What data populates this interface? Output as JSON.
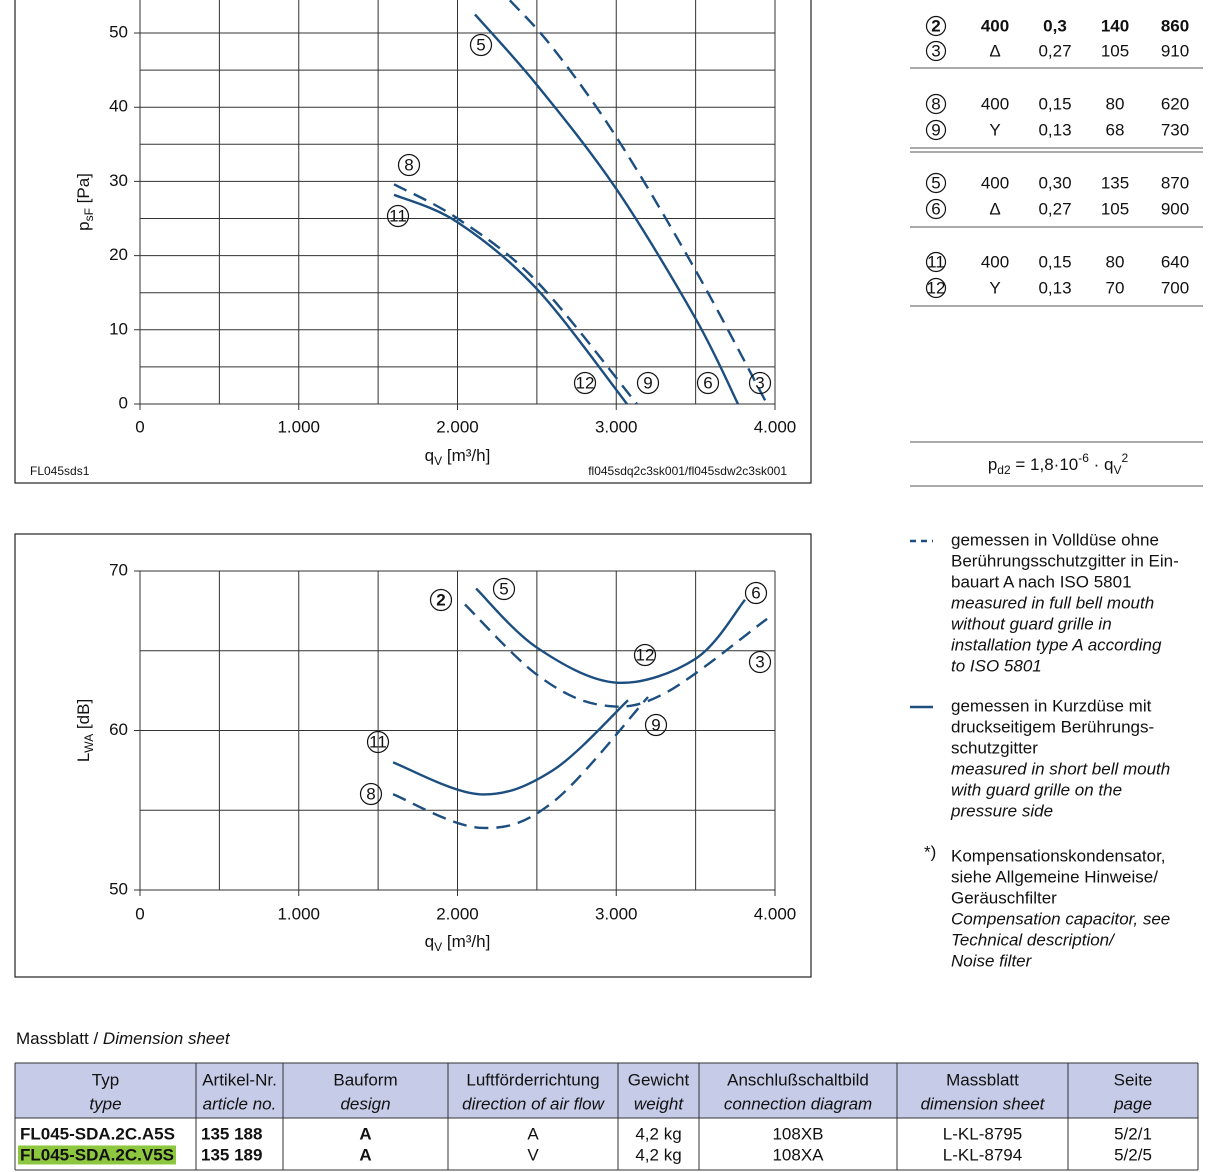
{
  "chart_data": [
    {
      "type": "line",
      "ylabel": {
        "symbol": "p",
        "subscript": "sF",
        "unit": " [Pa]"
      },
      "xlabel": {
        "symbol": "q",
        "subscript": "V",
        "unit": " [m³/h]"
      },
      "xlim": [
        0,
        4000
      ],
      "ylim": [
        0,
        60
      ],
      "xticks": [
        0,
        {
          "value": 1000,
          "label": "1.000"
        },
        {
          "value": 2000,
          "label": "2.000"
        },
        {
          "value": 3000,
          "label": "3.000"
        },
        {
          "value": 4000,
          "label": "4.000"
        }
      ],
      "yticks": [
        0,
        10,
        20,
        30,
        40,
        50
      ],
      "minor_xticks": [
        500,
        1500,
        2500,
        3500
      ],
      "minor_yticks": [
        5,
        15,
        25,
        35,
        45,
        55
      ],
      "grid": true,
      "notes": [
        "FL045sds1",
        "fl045sdq2c3sk001/fl045sdw2c3sk001"
      ],
      "series": [
        {
          "style": "solid",
          "color": "#1c4f80",
          "labels": [
            "5",
            "6"
          ],
          "x": [
            2110,
            2500,
            3000,
            3500,
            3767
          ],
          "values": [
            52.5,
            43,
            29,
            11.5,
            0
          ]
        },
        {
          "style": "dashed",
          "color": "#1c4f80",
          "labels": [
            "3"
          ],
          "x": [
            2330,
            2600,
            3000,
            3500,
            3950
          ],
          "values": [
            54.4,
            48,
            36,
            18,
            0
          ]
        },
        {
          "style": "solid",
          "color": "#1c4f80",
          "labels": [
            "11",
            "12"
          ],
          "x": [
            1600,
            2000,
            2500,
            3068
          ],
          "values": [
            28.2,
            24.5,
            15.5,
            0
          ]
        },
        {
          "style": "dashed",
          "color": "#1c4f80",
          "labels": [
            "8",
            "9"
          ],
          "x": [
            1600,
            2000,
            2500,
            3130
          ],
          "values": [
            29.6,
            25,
            16.5,
            0
          ]
        }
      ]
    },
    {
      "type": "line",
      "ylabel": {
        "symbol": "L",
        "subscript": "WA",
        "unit": " [dB]"
      },
      "xlabel": {
        "symbol": "q",
        "subscript": "V",
        "unit": " [m³/h]"
      },
      "xlim": [
        0,
        4000
      ],
      "ylim": [
        50,
        70
      ],
      "xticks": [
        0,
        {
          "value": 1000,
          "label": "1.000"
        },
        {
          "value": 2000,
          "label": "2.000"
        },
        {
          "value": 3000,
          "label": "3.000"
        },
        {
          "value": 4000,
          "label": "4.000"
        }
      ],
      "yticks": [
        50,
        60,
        70
      ],
      "minor_xticks": [
        500,
        1500,
        2500,
        3500
      ],
      "minor_yticks": [
        55,
        65
      ],
      "grid": true,
      "notes": [],
      "series": [
        {
          "style": "solid",
          "color": "#1c4f80",
          "labels": [
            "5",
            "6"
          ],
          "x": [
            2117,
            2500,
            3000,
            3500,
            3811
          ],
          "values": [
            68.9,
            65.2,
            63.0,
            64.5,
            68.2
          ]
        },
        {
          "style": "dashed",
          "color": "#1c4f80",
          "labels": [
            "2",
            "3"
          ],
          "x": [
            2047,
            2500,
            2900,
            3300,
            3950
          ],
          "values": [
            67.9,
            63.5,
            61.6,
            62.3,
            67.0
          ]
        },
        {
          "style": "solid",
          "color": "#1c4f80",
          "labels": [
            "11",
            "12"
          ],
          "x": [
            1594,
            2140,
            2600,
            3074
          ],
          "values": [
            58.0,
            56.0,
            57.5,
            61.9
          ]
        },
        {
          "style": "dashed",
          "color": "#1c4f80",
          "labels": [
            "8",
            "9"
          ],
          "x": [
            1594,
            2140,
            2600,
            3200
          ],
          "values": [
            56.0,
            53.9,
            55.5,
            62.1
          ]
        }
      ]
    }
  ],
  "operating_points": {
    "rows": [
      [
        "2",
        "400",
        "0,3",
        "140",
        "860"
      ],
      [
        "3",
        "Δ",
        "0,27",
        "105",
        "910"
      ],
      [
        "8",
        "400",
        "0,15",
        "80",
        "620"
      ],
      [
        "9",
        "Y",
        "0,13",
        "68",
        "730"
      ],
      [
        "5",
        "400",
        "0,30",
        "135",
        "870"
      ],
      [
        "6",
        "Δ",
        "0,27",
        "105",
        "900"
      ],
      [
        "11",
        "400",
        "0,15",
        "80",
        "640"
      ],
      [
        "12",
        "Y",
        "0,13",
        "70",
        "700"
      ]
    ],
    "formula": [
      {
        "text": "p",
        "pos": "base"
      },
      {
        "text": "d2",
        "pos": "sub"
      },
      {
        "text": " = 1,8·10",
        "pos": "base"
      },
      {
        "text": "-6",
        "pos": "sup"
      },
      {
        "text": " · q",
        "pos": "base"
      },
      {
        "text": "V",
        "pos": "sub"
      },
      {
        "text": "2",
        "pos": "sup"
      }
    ]
  },
  "legend": [
    {
      "style": "dashed",
      "color": "#1c4f80",
      "de": [
        "gemessen in Volldüse ohne",
        "Berührungsschutzgitter in Ein-",
        "bauart A nach ISO 5801"
      ],
      "en": [
        "measured in full bell mouth",
        "without guard grille in",
        "installation type A according",
        "to ISO 5801"
      ]
    },
    {
      "style": "solid",
      "color": "#1c4f80",
      "de": [
        "gemessen in Kurzdüse mit",
        "druckseitigem Berührungs-",
        "schutzgitter"
      ],
      "en": [
        "measured in short bell mouth",
        "with guard grille on the",
        "pressure side"
      ]
    },
    {
      "marker": "*)",
      "de": [
        "Kompensationskondensator,",
        "siehe Allgemeine Hinweise/",
        "Geräuschfilter"
      ],
      "en": [
        "Compensation capacitor, see",
        "Technical description/",
        "Noise filter"
      ]
    }
  ],
  "dimension_sheet": {
    "heading": [
      "Massblatt / ",
      "Dimension sheet"
    ],
    "header": [
      {
        "de": "Typ",
        "en": "type"
      },
      {
        "de": "Artikel-Nr.",
        "en": "article no."
      },
      {
        "de": "Bauform",
        "en": "design"
      },
      {
        "de": "Luftförderrichtung",
        "en": "direction of air flow"
      },
      {
        "de": "Gewicht",
        "en": "weight"
      },
      {
        "de": "Anschlußschaltbild",
        "en": "connection diagram"
      },
      {
        "de": "Massblatt",
        "en": "dimension sheet"
      },
      {
        "de": "Seite",
        "en": "page"
      }
    ],
    "header_color": "#c6cbe7",
    "highlight_color": "#8dc63f",
    "rows": [
      [
        "FL045-SDA.2C.A5S",
        "135 188",
        "A",
        "A",
        "4,2 kg",
        "108XB",
        "L-KL-8795",
        "5/2/1"
      ],
      [
        "FL045-SDA.2C.V5S",
        "135 189",
        "A",
        "V",
        "4,2 kg",
        "108XA",
        "L-KL-8794",
        "5/2/5"
      ]
    ]
  }
}
